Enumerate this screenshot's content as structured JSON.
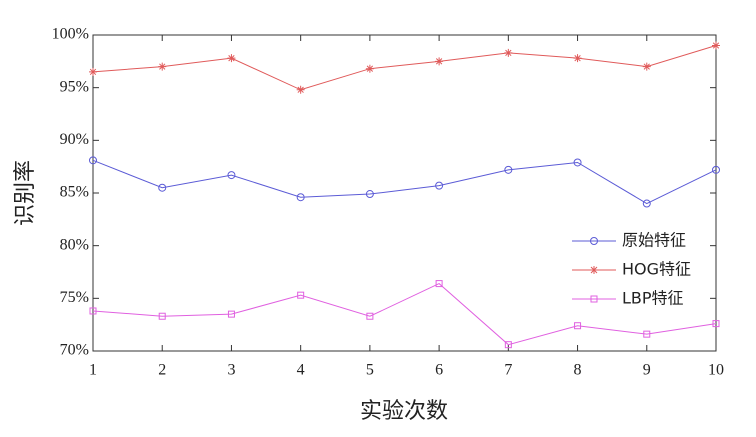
{
  "chart_data": {
    "type": "line",
    "x_label": "实验次数",
    "y_label": "识别率",
    "x": [
      1,
      2,
      3,
      4,
      5,
      6,
      7,
      8,
      9,
      10
    ],
    "series": [
      {
        "name": "原始特征",
        "color": "#5b5bd6",
        "marker": "circle",
        "values": [
          88.1,
          85.5,
          86.7,
          84.6,
          84.9,
          85.7,
          87.2,
          87.9,
          84.0,
          87.2
        ]
      },
      {
        "name": "HOG特征",
        "color": "#e05a5a",
        "marker": "asterisk",
        "values": [
          96.5,
          97.0,
          97.8,
          94.8,
          96.8,
          97.5,
          98.3,
          97.8,
          97.0,
          99.0
        ]
      },
      {
        "name": "LBP特征",
        "color": "#e060e0",
        "marker": "square",
        "values": [
          73.8,
          73.3,
          73.5,
          75.3,
          73.3,
          76.4,
          70.6,
          72.4,
          71.6,
          72.6
        ]
      }
    ],
    "xlim": [
      1,
      10
    ],
    "xticks": [
      1,
      2,
      3,
      4,
      5,
      6,
      7,
      8,
      9,
      10
    ],
    "ylim": [
      70,
      100
    ],
    "yticks": [
      {
        "value": 70,
        "label": "70%"
      },
      {
        "value": 75,
        "label": "75%"
      },
      {
        "value": 80,
        "label": "80%"
      },
      {
        "value": 85,
        "label": "85%"
      },
      {
        "value": 90,
        "label": "90%"
      },
      {
        "value": 95,
        "label": "95%"
      },
      {
        "value": 100,
        "label": "100%"
      }
    ],
    "grid": false,
    "legend": "east"
  }
}
